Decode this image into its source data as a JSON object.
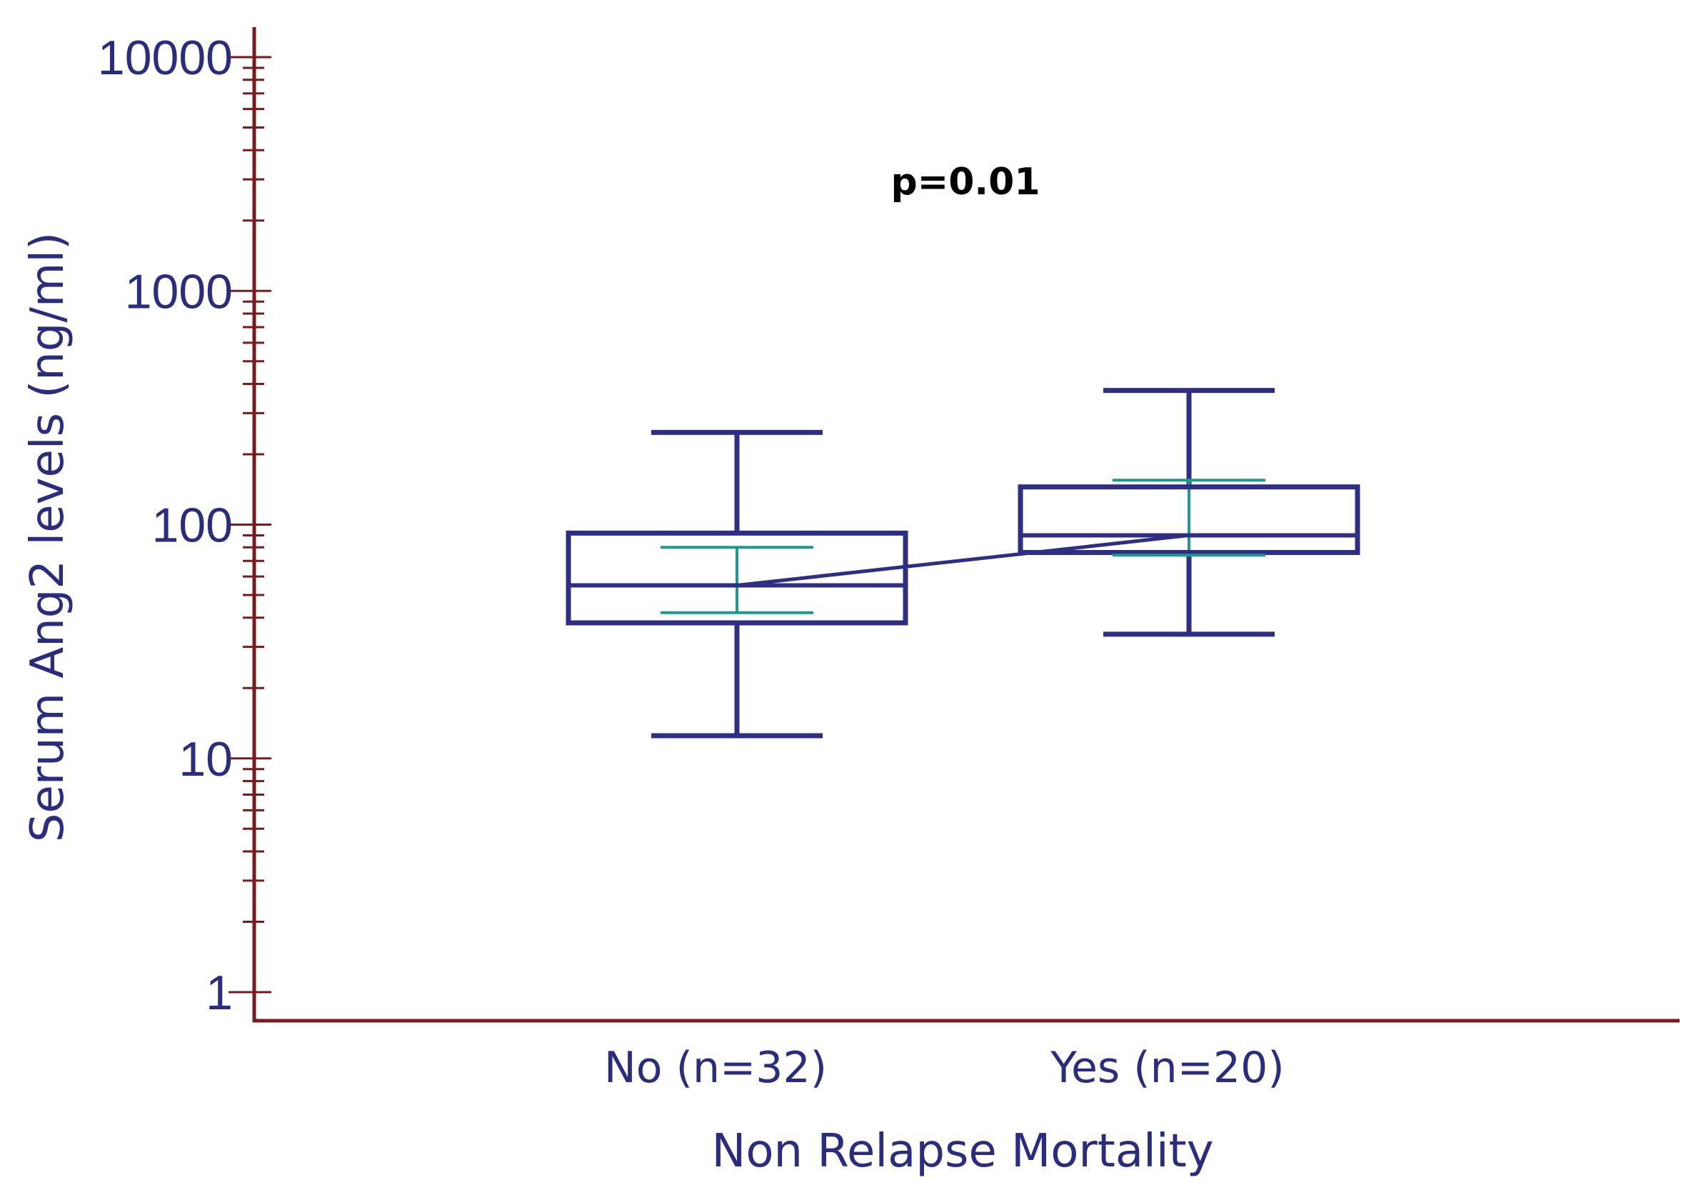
{
  "chart_data": {
    "type": "box",
    "title": "",
    "xlabel": "Non Relapse Mortality",
    "ylabel": "Serum Ang2 levels (ng/ml)",
    "y_scale": "log",
    "ylim": [
      1,
      10000
    ],
    "y_ticks": [
      {
        "value": 1,
        "label": "1"
      },
      {
        "value": 10,
        "label": "10"
      },
      {
        "value": 100,
        "label": "100"
      },
      {
        "value": 1000,
        "label": "1000"
      },
      {
        "value": 10000,
        "label": "10000"
      }
    ],
    "categories": [
      "No (n=32)",
      "Yes (n=20)"
    ],
    "boxes": [
      {
        "category": "No (n=32)",
        "whisker_low": 12.5,
        "q1": 38,
        "median": 55,
        "q3": 92,
        "whisker_high": 248,
        "ci_low": 42,
        "ci_high": 80
      },
      {
        "category": "Yes (n=20)",
        "whisker_low": 34,
        "q1": 76,
        "median": 90,
        "q3": 145,
        "whisker_high": 375,
        "ci_low": 74,
        "ci_high": 155
      }
    ],
    "median_line": true,
    "annotation": "p=0.01",
    "colors": {
      "box": "#2e2e85",
      "ci": "#1f9a8a",
      "axis": "#7a1a1a",
      "text": "#2b2b7f"
    }
  }
}
